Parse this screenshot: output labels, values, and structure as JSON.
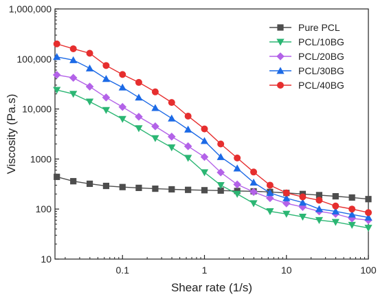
{
  "chart_data": {
    "type": "line",
    "xlabel": "Shear rate (1/s)",
    "ylabel": "Viscosity (Pa.s)",
    "x_scale": "log",
    "y_scale": "log",
    "xlim": [
      0.015,
      100
    ],
    "ylim": [
      10,
      1000000
    ],
    "x_ticks": [
      {
        "value": 0.1,
        "label": "0.1"
      },
      {
        "value": 1,
        "label": "1"
      },
      {
        "value": 10,
        "label": "10"
      },
      {
        "value": 100,
        "label": "100"
      }
    ],
    "y_ticks": [
      {
        "value": 10,
        "label": "10"
      },
      {
        "value": 100,
        "label": "100"
      },
      {
        "value": 1000,
        "label": "1000"
      },
      {
        "value": 10000,
        "label": "10,000"
      },
      {
        "value": 100000,
        "label": "100,000"
      },
      {
        "value": 1000000,
        "label": "1,000,000"
      }
    ],
    "grid": false,
    "legend_position": "top-right",
    "x": [
      0.0158,
      0.0251,
      0.0398,
      0.0631,
      0.1,
      0.158,
      0.251,
      0.398,
      0.631,
      1.0,
      1.58,
      2.51,
      3.98,
      6.31,
      10.0,
      15.8,
      25.1,
      39.8,
      63.1,
      100
    ],
    "series": [
      {
        "name": "Pure PCL",
        "color": "#4d4d4d",
        "marker": "square",
        "values": [
          440,
          360,
          320,
          290,
          275,
          265,
          255,
          248,
          242,
          238,
          234,
          230,
          226,
          220,
          210,
          200,
          190,
          180,
          170,
          158
        ]
      },
      {
        "name": "PCL/10BG",
        "color": "#2bb673",
        "marker": "triangle-down",
        "values": [
          24000,
          20000,
          14000,
          9500,
          6300,
          4100,
          2600,
          1700,
          1050,
          540,
          300,
          200,
          130,
          90,
          80,
          70,
          60,
          55,
          48,
          42
        ]
      },
      {
        "name": "PCL/20BG",
        "color": "#b362e8",
        "marker": "diamond",
        "values": [
          48000,
          42000,
          28000,
          17000,
          11000,
          7000,
          4500,
          2800,
          1800,
          1100,
          540,
          310,
          220,
          165,
          130,
          110,
          90,
          80,
          65,
          60
        ]
      },
      {
        "name": "PCL/30BG",
        "color": "#1c6ae6",
        "marker": "triangle-up",
        "values": [
          110000,
          95000,
          65000,
          40000,
          27000,
          17000,
          10500,
          6500,
          3900,
          2300,
          1100,
          650,
          340,
          210,
          165,
          135,
          100,
          90,
          78,
          68
        ]
      },
      {
        "name": "PCL/40BG",
        "color": "#e62e2e",
        "marker": "circle",
        "values": [
          200000,
          160000,
          130000,
          74000,
          49000,
          34000,
          22000,
          13500,
          7200,
          4000,
          2000,
          1050,
          550,
          300,
          210,
          175,
          150,
          115,
          100,
          85
        ]
      }
    ]
  }
}
